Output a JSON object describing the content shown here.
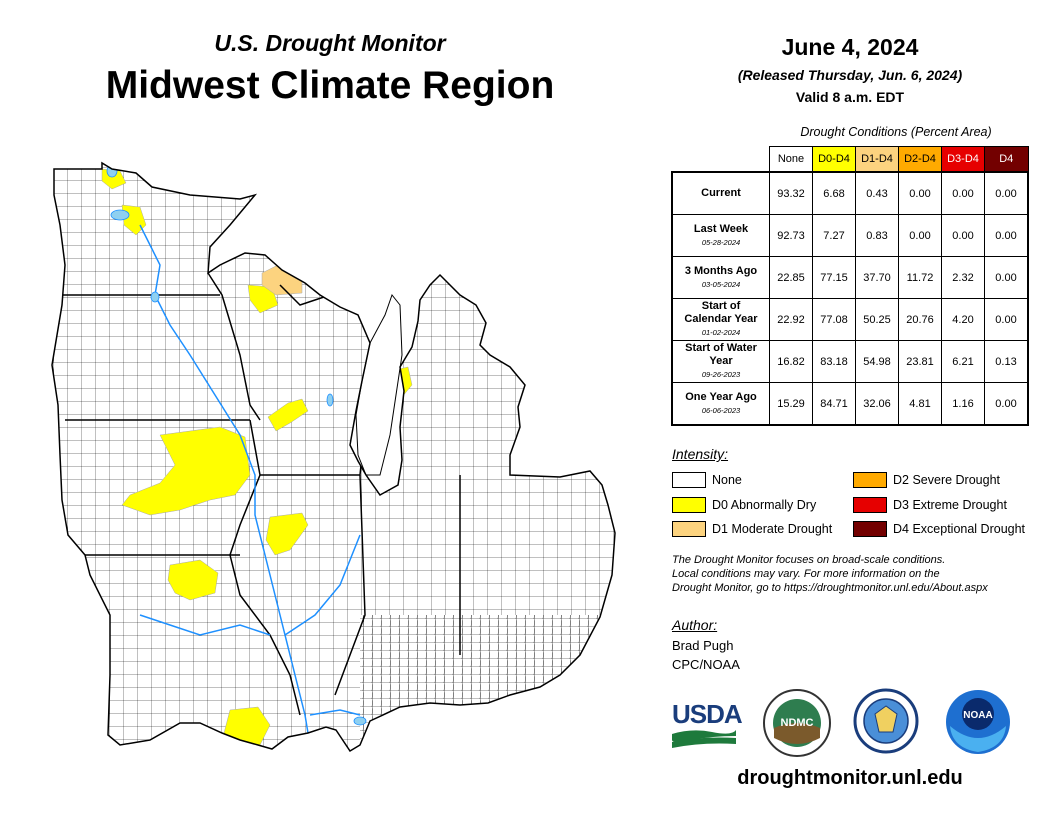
{
  "header": {
    "subtitle": "U.S. Drought Monitor",
    "title": "Midwest Climate Region",
    "date": "June 4, 2024",
    "released": "(Released Thursday, Jun. 6, 2024)",
    "valid": "Valid 8 a.m. EDT"
  },
  "table": {
    "caption": "Drought Conditions (Percent Area)",
    "columns": [
      "None",
      "D0-D4",
      "D1-D4",
      "D2-D4",
      "D3-D4",
      "D4"
    ],
    "column_colors": [
      "#ffffff",
      "#ffff00",
      "#fcd37f",
      "#ffaa00",
      "#e60000",
      "#730000"
    ],
    "rows": [
      {
        "label": "Current",
        "sub": "",
        "values": [
          "93.32",
          "6.68",
          "0.43",
          "0.00",
          "0.00",
          "0.00"
        ]
      },
      {
        "label": "Last Week",
        "sub": "05-28-2024",
        "values": [
          "92.73",
          "7.27",
          "0.83",
          "0.00",
          "0.00",
          "0.00"
        ]
      },
      {
        "label": "3 Months Ago",
        "sub": "03-05-2024",
        "values": [
          "22.85",
          "77.15",
          "37.70",
          "11.72",
          "2.32",
          "0.00"
        ]
      },
      {
        "label": "Start of Calendar Year",
        "sub": "01-02-2024",
        "values": [
          "22.92",
          "77.08",
          "50.25",
          "20.76",
          "4.20",
          "0.00"
        ]
      },
      {
        "label": "Start of Water Year",
        "sub": "09-26-2023",
        "values": [
          "16.82",
          "83.18",
          "54.98",
          "23.81",
          "6.21",
          "0.13"
        ]
      },
      {
        "label": "One Year Ago",
        "sub": "06-06-2023",
        "values": [
          "15.29",
          "84.71",
          "32.06",
          "4.81",
          "1.16",
          "0.00"
        ]
      }
    ]
  },
  "legend": {
    "heading": "Intensity:",
    "items": [
      {
        "label": "None",
        "color": "#ffffff"
      },
      {
        "label": "D0 Abnormally Dry",
        "color": "#ffff00"
      },
      {
        "label": "D1 Moderate Drought",
        "color": "#fcd37f"
      },
      {
        "label": "D2 Severe Drought",
        "color": "#ffaa00"
      },
      {
        "label": "D3 Extreme Drought",
        "color": "#e60000"
      },
      {
        "label": "D4 Exceptional Drought",
        "color": "#730000"
      }
    ]
  },
  "note": {
    "line1": "The Drought Monitor focuses on broad-scale conditions.",
    "line2": "Local conditions may vary. For more information on the",
    "line3": "Drought Monitor, go to https://droughtmonitor.unl.edu/About.aspx"
  },
  "author": {
    "heading": "Author:",
    "name": "Brad Pugh",
    "org": "CPC/NOAA"
  },
  "logos": {
    "usda": "USDA",
    "ndmc": "NDMC",
    "noaa": "NOAA"
  },
  "footer_url": "droughtmonitor.unl.edu",
  "map": {
    "water_color": "#8fd0f0",
    "river_color": "#1e90ff",
    "d0_color": "#ffff00",
    "d1_color": "#fcd37f"
  }
}
